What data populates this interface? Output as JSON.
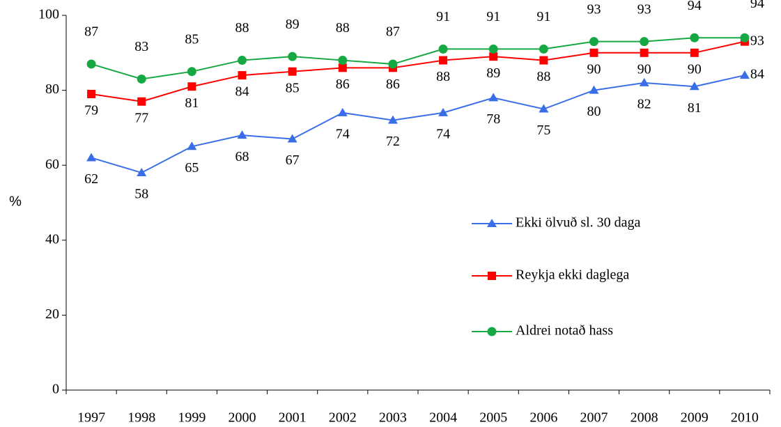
{
  "chart_data": {
    "type": "line",
    "ylabel": "%",
    "categories": [
      "1997",
      "1998",
      "1999",
      "2000",
      "2001",
      "2002",
      "2003",
      "2004",
      "2005",
      "2006",
      "2007",
      "2008",
      "2009",
      "2010"
    ],
    "series": [
      {
        "name": "Ekki ölvuð sl. 30 daga",
        "color": "#3a6ee8",
        "marker": "triangle",
        "values": [
          62,
          58,
          65,
          68,
          67,
          74,
          72,
          74,
          78,
          75,
          80,
          82,
          81,
          84
        ]
      },
      {
        "name": "Reykja ekki daglega",
        "color": "#ff0000",
        "marker": "square",
        "values": [
          79,
          77,
          81,
          84,
          85,
          86,
          86,
          88,
          89,
          88,
          90,
          90,
          90,
          93
        ]
      },
      {
        "name": "Aldrei notað hass",
        "color": "#16a843",
        "marker": "circle",
        "values": [
          87,
          83,
          85,
          88,
          89,
          88,
          87,
          91,
          91,
          91,
          93,
          93,
          94,
          94
        ]
      }
    ],
    "ylim": [
      0,
      100
    ],
    "yticks": [
      0,
      20,
      40,
      60,
      80,
      100
    ],
    "grid": false,
    "legend": "right",
    "data_labels": true
  }
}
